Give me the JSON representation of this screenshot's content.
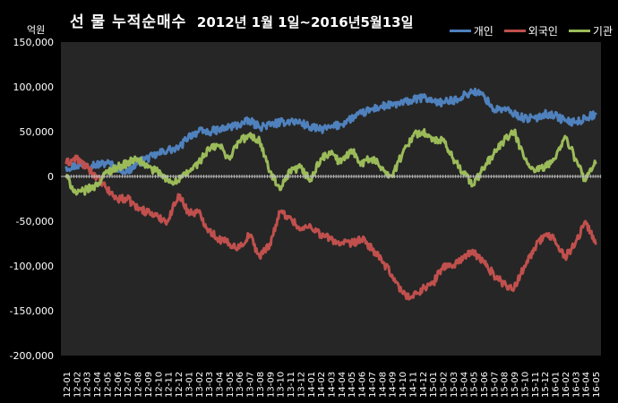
{
  "chart_data": {
    "type": "line",
    "title": "선 물 누적순매수",
    "subtitle": "2012년 1월 1일~2016년5월13일",
    "ylabel": "억원",
    "ylim": [
      -200000,
      150000
    ],
    "yticks": [
      150000,
      100000,
      50000,
      0,
      -50000,
      -100000,
      -150000,
      -200000
    ],
    "ytick_labels": [
      "150,000",
      "100,000",
      "50,000",
      "0",
      "-50,000",
      "-100,000",
      "-150,000",
      "-200,000"
    ],
    "categories": [
      "12-01",
      "12-02",
      "12-03",
      "12-04",
      "12-05",
      "12-06",
      "12-07",
      "12-08",
      "12-09",
      "12-10",
      "12-11",
      "12-12",
      "13-01",
      "13-02",
      "13-03",
      "13-04",
      "13-05",
      "13-06",
      "13-07",
      "13-08",
      "13-09",
      "13-10",
      "13-11",
      "13-12",
      "14-01",
      "14-02",
      "14-03",
      "14-04",
      "14-05",
      "14-06",
      "14-07",
      "14-08",
      "14-09",
      "14-10",
      "14-11",
      "14-12",
      "15-01",
      "15-02",
      "15-03",
      "15-04",
      "15-05",
      "15-06",
      "15-07",
      "15-08",
      "15-09",
      "15-10",
      "15-11",
      "15-12",
      "16-01",
      "16-02",
      "16-03",
      "16-04",
      "16-05"
    ],
    "legend_position": "top-right",
    "grid": false,
    "series": [
      {
        "name": "개인",
        "color": "#4f81bd",
        "values": [
          10000,
          12000,
          14000,
          13000,
          15000,
          10000,
          5000,
          15000,
          20000,
          25000,
          30000,
          30000,
          45000,
          50000,
          50000,
          52000,
          55000,
          58000,
          62000,
          55000,
          58000,
          60000,
          62000,
          60000,
          55000,
          52000,
          55000,
          58000,
          65000,
          70000,
          75000,
          78000,
          80000,
          82000,
          85000,
          88000,
          85000,
          82000,
          85000,
          90000,
          95000,
          90000,
          75000,
          75000,
          70000,
          65000,
          65000,
          70000,
          68000,
          62000,
          60000,
          65000,
          70000
        ]
      },
      {
        "name": "외국인",
        "color": "#c0504d",
        "values": [
          15000,
          20000,
          10000,
          0,
          -15000,
          -25000,
          -25000,
          -35000,
          -40000,
          -45000,
          -50000,
          -20000,
          -40000,
          -40000,
          -60000,
          -70000,
          -75000,
          -80000,
          -65000,
          -90000,
          -75000,
          -40000,
          -45000,
          -60000,
          -55000,
          -65000,
          -70000,
          -75000,
          -75000,
          -70000,
          -80000,
          -95000,
          -110000,
          -130000,
          -135000,
          -125000,
          -120000,
          -100000,
          -100000,
          -90000,
          -85000,
          -95000,
          -110000,
          -120000,
          -125000,
          -100000,
          -80000,
          -65000,
          -70000,
          -90000,
          -75000,
          -50000,
          -75000
        ]
      },
      {
        "name": "기관",
        "color": "#9bbb59",
        "values": [
          0,
          -20000,
          -15000,
          -10000,
          5000,
          10000,
          15000,
          20000,
          10000,
          5000,
          -5000,
          -5000,
          5000,
          15000,
          30000,
          35000,
          20000,
          40000,
          45000,
          40000,
          5000,
          -15000,
          5000,
          10000,
          -5000,
          20000,
          25000,
          15000,
          30000,
          15000,
          20000,
          10000,
          0,
          25000,
          45000,
          50000,
          40000,
          40000,
          20000,
          5000,
          -10000,
          10000,
          25000,
          40000,
          50000,
          20000,
          5000,
          10000,
          20000,
          45000,
          20000,
          -5000,
          15000
        ]
      }
    ]
  }
}
